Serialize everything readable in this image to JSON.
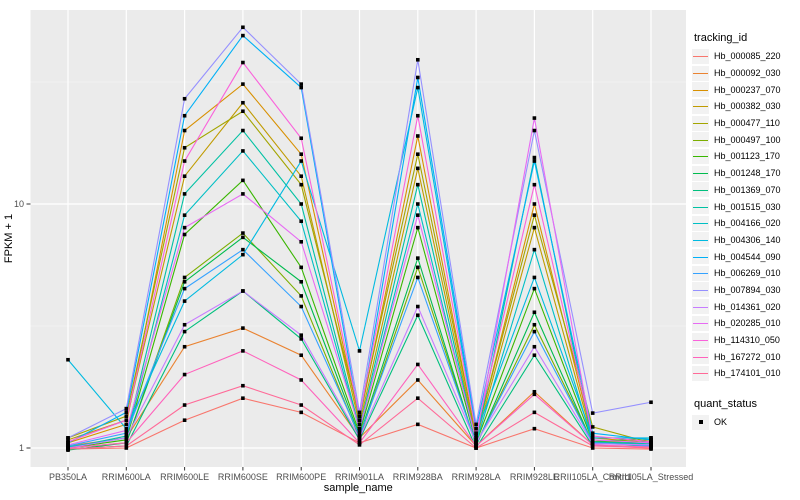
{
  "chart_data": {
    "type": "line",
    "title": "",
    "xlabel": "sample_name",
    "ylabel": "FPKM + 1",
    "y_scale": "log10",
    "legend_position": "right",
    "grid": true,
    "point_shape": "filled-square",
    "point_color": "#000000",
    "panel_bg": "#EBEBEB",
    "grid_color": "#FFFFFF",
    "tick_label_color": "#4D4D4D",
    "axis_title_color": "#000000",
    "y_ticks": [
      {
        "value": 1,
        "label": "1"
      },
      {
        "value": 10,
        "label": "10"
      }
    ],
    "y_minor_ticks": [
      3.162,
      31.62
    ],
    "ylim": [
      0.84,
      62
    ],
    "categories": [
      "PB350LA",
      "RRIM600LA",
      "RRIM600LE",
      "RRIM600SE",
      "RRIM600PE",
      "RRIM901LA",
      "RRIM928BA",
      "RRIM928LA",
      "RRIM928LE",
      "RRII105LA_Control",
      "RRII105LA_Stressed"
    ],
    "series": [
      {
        "name": "Hb_000085_220",
        "color": "#F8766D",
        "values": [
          0.99,
          1.0,
          1.3,
          1.6,
          1.4,
          1.05,
          1.25,
          1.0,
          1.2,
          1.0,
          0.99
        ]
      },
      {
        "name": "Hb_000092_030",
        "color": "#EA8331",
        "values": [
          1.02,
          1.1,
          2.6,
          3.1,
          2.4,
          1.1,
          1.9,
          1.02,
          1.7,
          1.03,
          1.0
        ]
      },
      {
        "name": "Hb_000237_070",
        "color": "#D89000",
        "values": [
          1.05,
          1.25,
          20.0,
          31.0,
          16.0,
          1.3,
          19.0,
          1.1,
          10.0,
          1.1,
          1.05
        ]
      },
      {
        "name": "Hb_000382_030",
        "color": "#C09B00",
        "values": [
          1.08,
          1.3,
          13.0,
          26.0,
          13.0,
          1.25,
          14.0,
          1.08,
          8.0,
          1.08,
          1.02
        ]
      },
      {
        "name": "Hb_000477_110",
        "color": "#A3A500",
        "values": [
          1.1,
          1.35,
          17.0,
          24.0,
          12.0,
          1.35,
          16.0,
          1.12,
          9.0,
          1.22,
          1.05
        ]
      },
      {
        "name": "Hb_000497_100",
        "color": "#7CAE00",
        "values": [
          1.0,
          1.05,
          5.0,
          7.6,
          4.2,
          1.1,
          5.5,
          1.03,
          3.2,
          1.05,
          1.08
        ]
      },
      {
        "name": "Hb_001123_170",
        "color": "#39B600",
        "values": [
          1.0,
          1.08,
          7.5,
          12.5,
          5.5,
          1.15,
          8.0,
          1.05,
          4.5,
          1.06,
          1.1
        ]
      },
      {
        "name": "Hb_001248_170",
        "color": "#00BB4E",
        "values": [
          0.98,
          1.05,
          4.8,
          7.3,
          4.8,
          1.12,
          6.0,
          1.02,
          3.6,
          1.04,
          1.06
        ]
      },
      {
        "name": "Hb_001369_070",
        "color": "#00BF7D",
        "values": [
          0.99,
          1.02,
          3.0,
          4.4,
          2.8,
          1.08,
          3.5,
          1.0,
          2.4,
          1.02,
          1.02
        ]
      },
      {
        "name": "Hb_001515_030",
        "color": "#00C1A3",
        "values": [
          1.0,
          1.12,
          11.0,
          20.0,
          10.0,
          1.2,
          12.0,
          1.06,
          15.5,
          1.06,
          1.04
        ]
      },
      {
        "name": "Hb_004166_020",
        "color": "#00BFC4",
        "values": [
          1.01,
          1.1,
          9.0,
          16.5,
          8.5,
          1.18,
          10.0,
          1.05,
          6.5,
          1.05,
          1.03
        ]
      },
      {
        "name": "Hb_004306_140",
        "color": "#00BAE0",
        "values": [
          2.3,
          1.2,
          4.0,
          6.2,
          15.0,
          2.5,
          30.0,
          1.15,
          5.0,
          1.1,
          1.1
        ]
      },
      {
        "name": "Hb_004544_090",
        "color": "#00B0F6",
        "values": [
          1.05,
          1.4,
          23.0,
          49.0,
          30.0,
          1.3,
          33.0,
          1.2,
          15.0,
          1.15,
          1.08
        ]
      },
      {
        "name": "Hb_006269_010",
        "color": "#35A2FF",
        "values": [
          1.02,
          1.15,
          4.5,
          6.5,
          3.8,
          1.12,
          5.0,
          1.04,
          3.0,
          1.05,
          1.02
        ]
      },
      {
        "name": "Hb_007894_030",
        "color": "#9590FF",
        "values": [
          1.1,
          1.45,
          27.0,
          53.0,
          31.0,
          1.4,
          39.0,
          1.25,
          20.0,
          1.39,
          1.54
        ]
      },
      {
        "name": "Hb_014361_020",
        "color": "#C77CFF",
        "values": [
          1.0,
          1.1,
          3.2,
          4.4,
          2.9,
          1.1,
          3.8,
          1.05,
          2.6,
          1.04,
          1.03
        ]
      },
      {
        "name": "Hb_020285_010",
        "color": "#E76BF3",
        "values": [
          1.03,
          1.18,
          8.0,
          11.0,
          7.0,
          1.2,
          9.0,
          1.08,
          22.5,
          1.08,
          1.05
        ]
      },
      {
        "name": "Hb_114310_050",
        "color": "#FA62DB",
        "values": [
          1.06,
          1.3,
          15.0,
          38.0,
          18.6,
          1.35,
          23.0,
          1.15,
          12.0,
          1.12,
          1.06
        ]
      },
      {
        "name": "Hb_167272_010",
        "color": "#FF62BC",
        "values": [
          1.0,
          1.05,
          2.0,
          2.5,
          1.9,
          1.05,
          2.2,
          1.02,
          1.66,
          1.03,
          1.01
        ]
      },
      {
        "name": "Hb_174101_010",
        "color": "#FF6A98",
        "values": [
          0.99,
          1.02,
          1.5,
          1.8,
          1.5,
          1.03,
          1.6,
          1.0,
          1.4,
          1.02,
          1.0
        ]
      }
    ]
  },
  "legend": {
    "tracking_title": "tracking_id",
    "quant_title": "quant_status",
    "quant_items": [
      {
        "label": "OK"
      }
    ]
  }
}
